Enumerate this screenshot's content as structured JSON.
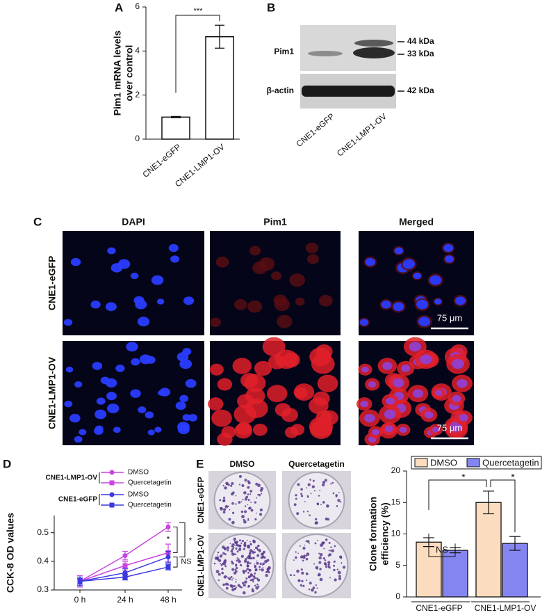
{
  "blot": {
    "panel": "B",
    "rows": [
      "Pim1",
      "β-actin"
    ],
    "markers": [
      "44 kDa",
      "33 kDa",
      "42 kDa"
    ],
    "lanes": [
      "CNE1-eGFP",
      "CNE1-LMP1-OV"
    ]
  },
  "microscopy": {
    "panel": "C",
    "columns": [
      "DAPI",
      "Pim1",
      "Merged"
    ],
    "rows": [
      "CNE1-eGFP",
      "CNE1-LMP1-OV"
    ],
    "scale_bar": "75 μm"
  },
  "clones": {
    "columns": [
      "DMSO",
      "Quercetagetin"
    ],
    "rows": [
      "CNE1-eGFP",
      "CNE1-LMP1-OV"
    ]
  },
  "chart_data": [
    {
      "panel": "A",
      "type": "bar",
      "ylabel": [
        "Pim1 mRNA levels",
        "over control"
      ],
      "categories": [
        "CNE1-eGFP",
        "CNE1-LMP1-OV"
      ],
      "values": [
        1,
        4.65
      ],
      "errors": [
        0.03,
        0.52
      ],
      "color": "#ffffff",
      "ylim": [
        0,
        6
      ],
      "yticks": [
        0,
        2,
        4,
        6
      ],
      "annotations": [
        "***"
      ]
    },
    {
      "panel": "D",
      "type": "line",
      "ylabel": "CCK-8 OD values",
      "categories": [
        "0 h",
        "24 h",
        "48 h"
      ],
      "legend_groups": [
        "CNE1-LMP1-OV",
        "CNE1-eGFP"
      ],
      "series": [
        {
          "name": "DMSO",
          "color": "#c845e0",
          "marker": "circle",
          "values": [
            0.33,
            0.42,
            0.52
          ],
          "errors": [
            0.02,
            0.015,
            0.015
          ]
        },
        {
          "name": "Quercetagetin",
          "color": "#c845e0",
          "marker": "square",
          "values": [
            0.33,
            0.385,
            0.43
          ],
          "errors": [
            0.015,
            0.015,
            0.03
          ]
        },
        {
          "name": "DMSO",
          "color": "#3a3adf",
          "marker": "circle",
          "values": [
            0.33,
            0.36,
            0.415
          ],
          "errors": [
            0.015,
            0.015,
            0.02
          ]
        },
        {
          "name": "Quercetagetin",
          "color": "#3a3adf",
          "marker": "square",
          "values": [
            0.33,
            0.345,
            0.38
          ],
          "errors": [
            0.01,
            0.01,
            0.01
          ]
        }
      ],
      "ylim": [
        0.3,
        0.56
      ],
      "yticks": [
        0.3,
        0.4,
        0.5
      ],
      "annotations": [
        "*",
        "*",
        "NS"
      ]
    },
    {
      "type": "bar",
      "ylabel": [
        "Clone formation",
        "efficiency (%)"
      ],
      "categories": [
        "CNE1-eGFP",
        "CNE1-LMP1-OV"
      ],
      "series": [
        {
          "name": "DMSO",
          "color": "#fbdcbf",
          "values": [
            8.7,
            15
          ],
          "errors": [
            0.7,
            1.8
          ]
        },
        {
          "name": "Quercetagetin",
          "color": "#8585f2",
          "values": [
            7.4,
            8.5
          ],
          "errors": [
            0.4,
            1.1
          ]
        }
      ],
      "ylim": [
        0,
        20
      ],
      "yticks": [
        0,
        5,
        10,
        15,
        20
      ],
      "legend": "top",
      "annotations": [
        "NS",
        "*",
        "*"
      ],
      "panel": "E"
    }
  ]
}
